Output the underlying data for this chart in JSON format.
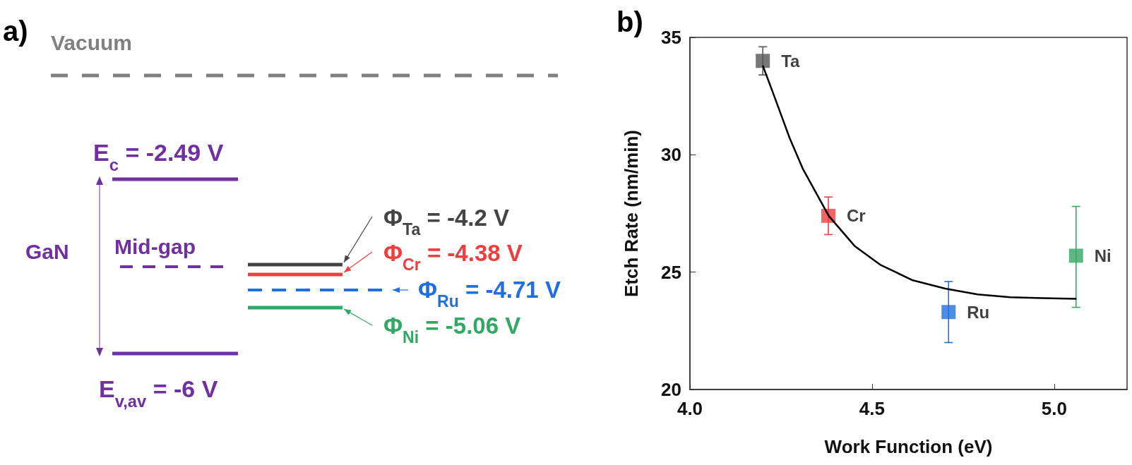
{
  "chart_data": [
    {
      "type": "other",
      "title": "a)",
      "annotations": [
        "Vacuum",
        "E$_{c}$ = -2.49 V",
        "GaN",
        "Mid-gap",
        "E$_{v,av}$ = -6 V",
        "Φ$_{Ta}$ = -4.2 V",
        "Φ$_{Cr}$ = -4.38 V",
        "Φ$_{Ru}$ = -4.71 V",
        "Φ$_{Ni}$ = -5.06 V"
      ]
    },
    {
      "type": "scatter",
      "title": "b)",
      "xlabel": "Work Function (eV)",
      "ylabel": "Etch Rate (nm/min)",
      "xlim": [
        4.0,
        5.2
      ],
      "xticks": [
        {
          "value": 4.0,
          "label": "4.0"
        },
        {
          "value": 4.5,
          "label": "4.5"
        },
        {
          "value": 5.0,
          "label": "5.0"
        }
      ],
      "ylim": [
        20,
        35
      ],
      "yticks": [
        20,
        25,
        30,
        35
      ],
      "marker": "square",
      "grid": false,
      "series": [
        {
          "name": "Ta",
          "color": "#555555",
          "x": [
            4.2
          ],
          "values": [
            34.0
          ],
          "errors": [
            [
              33.4,
              34.6
            ]
          ]
        },
        {
          "name": "Cr",
          "color": "#ef3e3e",
          "x": [
            4.38
          ],
          "values": [
            27.4
          ],
          "errors": [
            [
              26.6,
              28.2
            ]
          ]
        },
        {
          "name": "Ru",
          "color": "#1f6fe0",
          "x": [
            4.71
          ],
          "values": [
            23.3
          ],
          "errors": [
            [
              22.0,
              24.6
            ]
          ]
        },
        {
          "name": "Ni",
          "color": "#33a864",
          "x": [
            5.06
          ],
          "values": [
            25.7
          ],
          "errors": [
            [
              23.5,
              27.8
            ]
          ]
        },
        {
          "type": "line",
          "color": "#000000",
          "marker": "none",
          "line_style": "solid",
          "x": [
            4.2,
            4.229,
            4.274,
            4.31,
            4.381,
            4.453,
            4.524,
            4.612,
            4.701,
            4.79,
            4.879,
            4.968,
            5.061
          ],
          "values": [
            33.8,
            32.6,
            30.7,
            29.4,
            27.4,
            26.1,
            25.3,
            24.65,
            24.3,
            24.05,
            23.93,
            23.89,
            23.86
          ]
        }
      ]
    }
  ]
}
